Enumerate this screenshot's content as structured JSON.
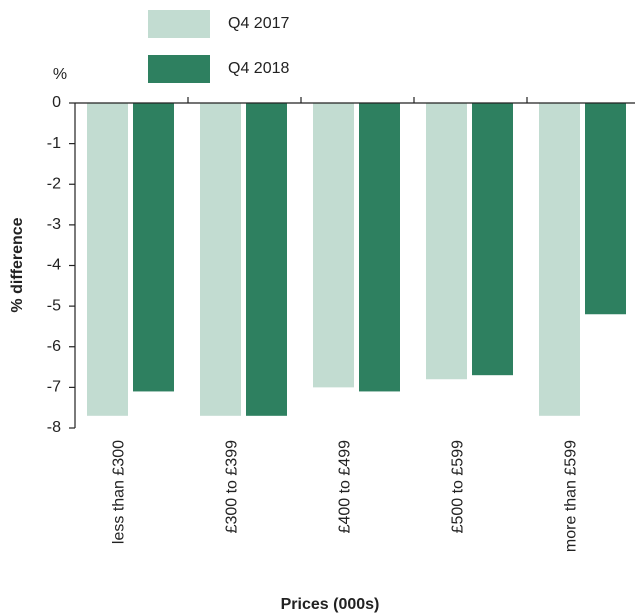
{
  "chart_data": {
    "type": "bar",
    "y_unit": "%",
    "y_label": "% difference",
    "x_label": "Prices (000s)",
    "categories": [
      "less than £300",
      "£300 to £399",
      "£400 to £499",
      "£500 to £599",
      "more than £599"
    ],
    "series": [
      {
        "name": "Q4 2017",
        "color": "#c2dcd1",
        "values": [
          -7.7,
          -7.7,
          -7.0,
          -6.8,
          -7.7
        ]
      },
      {
        "name": "Q4 2018",
        "color": "#2e8060",
        "values": [
          -7.1,
          -7.7,
          -7.1,
          -6.7,
          -5.2
        ]
      }
    ],
    "ylim": [
      -8,
      0
    ],
    "yticks": [
      0,
      -1,
      -2,
      -3,
      -4,
      -5,
      -6,
      -7,
      -8
    ]
  }
}
